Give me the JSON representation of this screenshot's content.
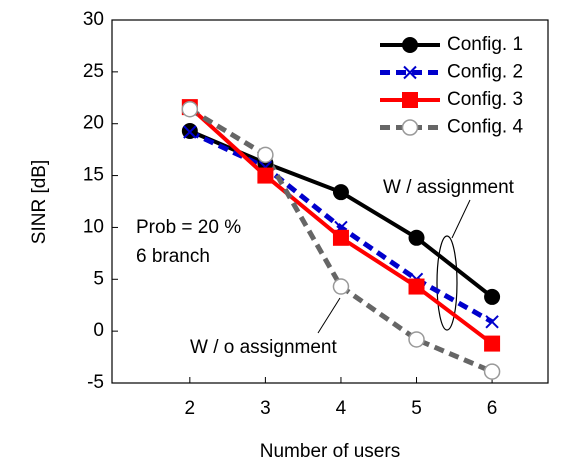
{
  "chart_data": {
    "type": "line",
    "xlabel": "Number of users",
    "ylabel": "SINR [dB]",
    "x": [
      2,
      3,
      4,
      5,
      6
    ],
    "series": [
      {
        "name": "Config. 1",
        "color": "#000000",
        "marker": "filled-circle",
        "dash": "solid",
        "values": [
          19.3,
          16.2,
          13.4,
          9.0,
          3.3
        ]
      },
      {
        "name": "Config. 2",
        "color": "#0000cc",
        "marker": "x",
        "dash": "dashed",
        "values": [
          19.2,
          15.8,
          10.0,
          5.0,
          0.9
        ]
      },
      {
        "name": "Config. 3",
        "color": "#ff0000",
        "marker": "filled-square",
        "dash": "solid",
        "values": [
          21.6,
          15.0,
          9.0,
          4.3,
          -1.2
        ]
      },
      {
        "name": "Config. 4",
        "color": "#666666",
        "marker": "open-circle",
        "dash": "dashed",
        "values": [
          21.4,
          17.0,
          4.3,
          -0.8,
          -3.9
        ]
      }
    ],
    "xlim": [
      0.97,
      6.74
    ],
    "xticks": [
      2,
      3,
      4,
      5,
      6
    ],
    "ylim": [
      -5,
      30
    ],
    "yticks": [
      -5,
      0,
      5,
      10,
      15,
      20,
      25,
      30
    ],
    "annotations": [
      "Prob = 20 %",
      "6 branch",
      "W / assignment",
      "W / o assignment"
    ],
    "legend": "upper right"
  }
}
